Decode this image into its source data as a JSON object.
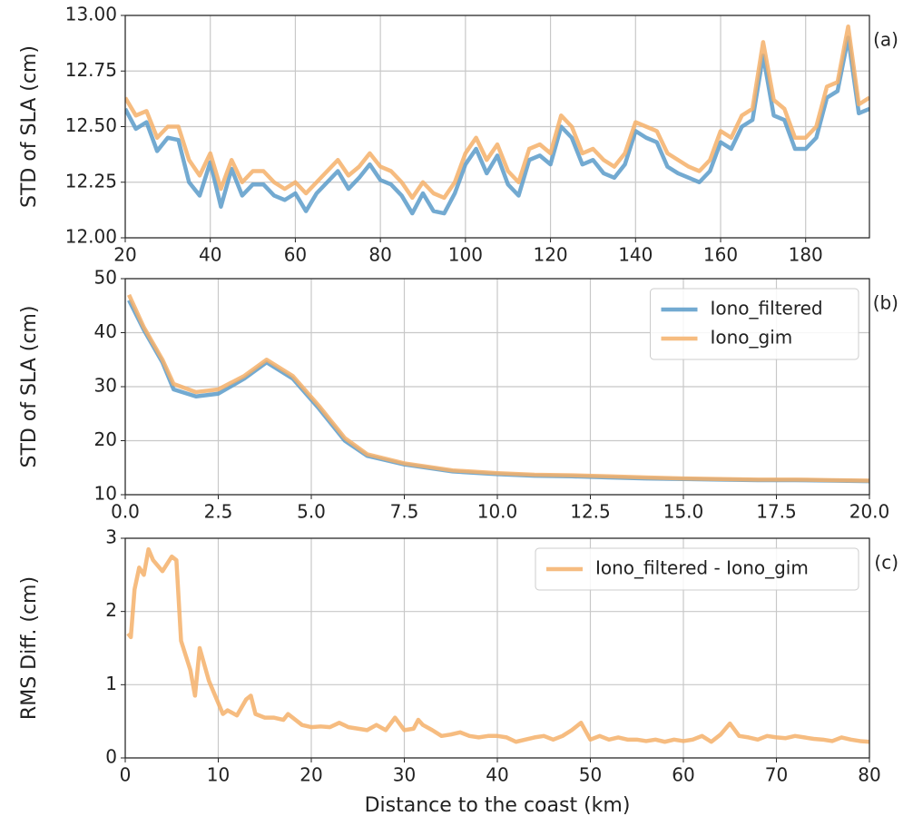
{
  "chart_data": [
    {
      "type": "line",
      "ylabel": "STD of SLA (cm)",
      "annotation": "(a)",
      "grid": true,
      "xlim": [
        20,
        195
      ],
      "xticks": [
        20,
        40,
        60,
        80,
        100,
        120,
        140,
        160,
        180
      ],
      "ylim": [
        12,
        13
      ],
      "yticks": [
        {
          "value": 12,
          "label": "12.00"
        },
        {
          "value": 12.25,
          "label": "12.25"
        },
        {
          "value": 12.5,
          "label": "12.50"
        },
        {
          "value": 12.75,
          "label": "12.75"
        },
        {
          "value": 13,
          "label": "13.00"
        }
      ],
      "x": [
        20,
        22.5,
        25,
        27.5,
        30,
        32.5,
        35,
        37.5,
        40,
        42.5,
        45,
        47.5,
        50,
        52.5,
        55,
        57.5,
        60,
        62.5,
        65,
        67.5,
        70,
        72.5,
        75,
        77.5,
        80,
        82.5,
        85,
        87.5,
        90,
        92.5,
        95,
        97.5,
        100,
        102.5,
        105,
        107.5,
        110,
        112.5,
        115,
        117.5,
        120,
        122.5,
        125,
        127.5,
        130,
        132.5,
        135,
        137.5,
        140,
        142.5,
        145,
        147.5,
        150,
        152.5,
        155,
        157.5,
        160,
        162.5,
        165,
        167.5,
        170,
        172.5,
        175,
        177.5,
        180,
        182.5,
        185,
        187.5,
        190,
        192.5,
        195
      ],
      "series": [
        {
          "color": "#5b9bc9",
          "values": [
            12.58,
            12.49,
            12.52,
            12.39,
            12.45,
            12.44,
            12.25,
            12.19,
            12.34,
            12.14,
            12.31,
            12.19,
            12.24,
            12.24,
            12.19,
            12.17,
            12.2,
            12.12,
            12.2,
            12.25,
            12.3,
            12.22,
            12.27,
            12.33,
            12.26,
            12.24,
            12.19,
            12.11,
            12.2,
            12.12,
            12.11,
            12.2,
            12.33,
            12.4,
            12.29,
            12.37,
            12.24,
            12.19,
            12.35,
            12.37,
            12.33,
            12.5,
            12.45,
            12.33,
            12.35,
            12.29,
            12.27,
            12.33,
            12.48,
            12.45,
            12.43,
            12.32,
            12.29,
            12.27,
            12.25,
            12.3,
            12.43,
            12.4,
            12.5,
            12.53,
            12.82,
            12.55,
            12.53,
            12.4,
            12.4,
            12.45,
            12.63,
            12.66,
            12.9,
            12.56,
            12.58
          ]
        },
        {
          "color": "#f5b06a",
          "values": [
            12.63,
            12.55,
            12.57,
            12.45,
            12.5,
            12.5,
            12.35,
            12.28,
            12.38,
            12.22,
            12.35,
            12.25,
            12.3,
            12.3,
            12.25,
            12.22,
            12.25,
            12.2,
            12.25,
            12.3,
            12.35,
            12.28,
            12.32,
            12.38,
            12.32,
            12.3,
            12.25,
            12.18,
            12.25,
            12.2,
            12.18,
            12.25,
            12.38,
            12.45,
            12.35,
            12.42,
            12.3,
            12.25,
            12.4,
            12.42,
            12.38,
            12.55,
            12.5,
            12.38,
            12.4,
            12.35,
            12.32,
            12.38,
            12.52,
            12.5,
            12.48,
            12.38,
            12.35,
            12.32,
            12.3,
            12.35,
            12.48,
            12.45,
            12.55,
            12.58,
            12.88,
            12.62,
            12.58,
            12.45,
            12.45,
            12.5,
            12.68,
            12.7,
            12.95,
            12.6,
            12.63
          ]
        }
      ]
    },
    {
      "type": "line",
      "ylabel": "STD of SLA (cm)",
      "annotation": "(b)",
      "grid": true,
      "legend": "upper right",
      "xlim": [
        0,
        20
      ],
      "xticks": [
        {
          "value": 0,
          "label": "0.0"
        },
        2.5,
        {
          "value": 5,
          "label": "5.0"
        },
        7.5,
        {
          "value": 10,
          "label": "10.0"
        },
        12.5,
        {
          "value": 15,
          "label": "15.0"
        },
        17.5,
        {
          "value": 20,
          "label": "20.0"
        }
      ],
      "ylim": [
        10,
        50
      ],
      "yticks": [
        10,
        20,
        30,
        40,
        50
      ],
      "x": [
        0.1,
        0.5,
        1,
        1.3,
        1.9,
        2.5,
        3.2,
        3.8,
        4.5,
        5.2,
        5.9,
        6.5,
        7.5,
        8.8,
        10,
        11,
        12,
        13,
        14,
        15,
        16,
        17,
        18,
        19,
        20
      ],
      "series": [
        {
          "name": "Iono_filtered",
          "color": "#5b9bc9",
          "values": [
            46,
            40.5,
            34.5,
            29.5,
            28.2,
            28.7,
            31.5,
            34.5,
            31.5,
            26,
            20,
            17.2,
            15.6,
            14.3,
            13.8,
            13.5,
            13.4,
            13.2,
            13,
            12.9,
            12.8,
            12.7,
            12.7,
            12.6,
            12.5
          ]
        },
        {
          "name": "Iono_gim",
          "color": "#f5b06a",
          "values": [
            47,
            41,
            35,
            30.5,
            29,
            29.5,
            32,
            35,
            32,
            26.5,
            20.5,
            17.5,
            15.8,
            14.5,
            14,
            13.7,
            13.6,
            13.4,
            13.2,
            13,
            12.9,
            12.8,
            12.8,
            12.7,
            12.6
          ]
        }
      ]
    },
    {
      "type": "line",
      "ylabel": "RMS Diff. (cm)",
      "xlabel": "Distance to the coast (km)",
      "annotation": "(c)",
      "grid": true,
      "legend": "upper right",
      "xlim": [
        0,
        80
      ],
      "xticks": [
        0,
        10,
        20,
        30,
        40,
        50,
        60,
        70,
        80
      ],
      "ylim": [
        0,
        3
      ],
      "yticks": [
        0,
        1,
        2,
        3
      ],
      "x": [
        0.3,
        0.6,
        1,
        1.5,
        2,
        2.5,
        3,
        4,
        5,
        5.5,
        6,
        7,
        7.5,
        8,
        9,
        10,
        10.5,
        11,
        12,
        13,
        13.5,
        14,
        15,
        16,
        17,
        17.5,
        18,
        19,
        20,
        21,
        22,
        23,
        24,
        25,
        26,
        27,
        28,
        29,
        30,
        31,
        31.5,
        32,
        33,
        34,
        35,
        36,
        37,
        38,
        39,
        40,
        41,
        42,
        43,
        44,
        45,
        46,
        47,
        48,
        49,
        50,
        51,
        52,
        53,
        54,
        55,
        56,
        57,
        58,
        59,
        60,
        61,
        62,
        63,
        64,
        65,
        66,
        67,
        68,
        69,
        70,
        71,
        72,
        73,
        74,
        75,
        76,
        77,
        78,
        79,
        80
      ],
      "series": [
        {
          "name": "Iono_filtered - Iono_gim",
          "color": "#f5b06a",
          "values": [
            1.7,
            1.65,
            2.3,
            2.6,
            2.5,
            2.85,
            2.7,
            2.55,
            2.75,
            2.7,
            1.6,
            1.2,
            0.85,
            1.5,
            1.05,
            0.75,
            0.6,
            0.65,
            0.58,
            0.8,
            0.85,
            0.6,
            0.55,
            0.55,
            0.52,
            0.6,
            0.55,
            0.45,
            0.42,
            0.43,
            0.42,
            0.48,
            0.42,
            0.4,
            0.38,
            0.45,
            0.38,
            0.55,
            0.38,
            0.4,
            0.52,
            0.45,
            0.38,
            0.3,
            0.32,
            0.35,
            0.3,
            0.28,
            0.3,
            0.3,
            0.28,
            0.22,
            0.25,
            0.28,
            0.3,
            0.25,
            0.3,
            0.38,
            0.48,
            0.25,
            0.3,
            0.25,
            0.28,
            0.25,
            0.25,
            0.23,
            0.25,
            0.22,
            0.25,
            0.23,
            0.25,
            0.3,
            0.22,
            0.32,
            0.47,
            0.3,
            0.28,
            0.25,
            0.3,
            0.28,
            0.27,
            0.3,
            0.28,
            0.26,
            0.25,
            0.23,
            0.28,
            0.25,
            0.23,
            0.22
          ]
        }
      ]
    }
  ]
}
